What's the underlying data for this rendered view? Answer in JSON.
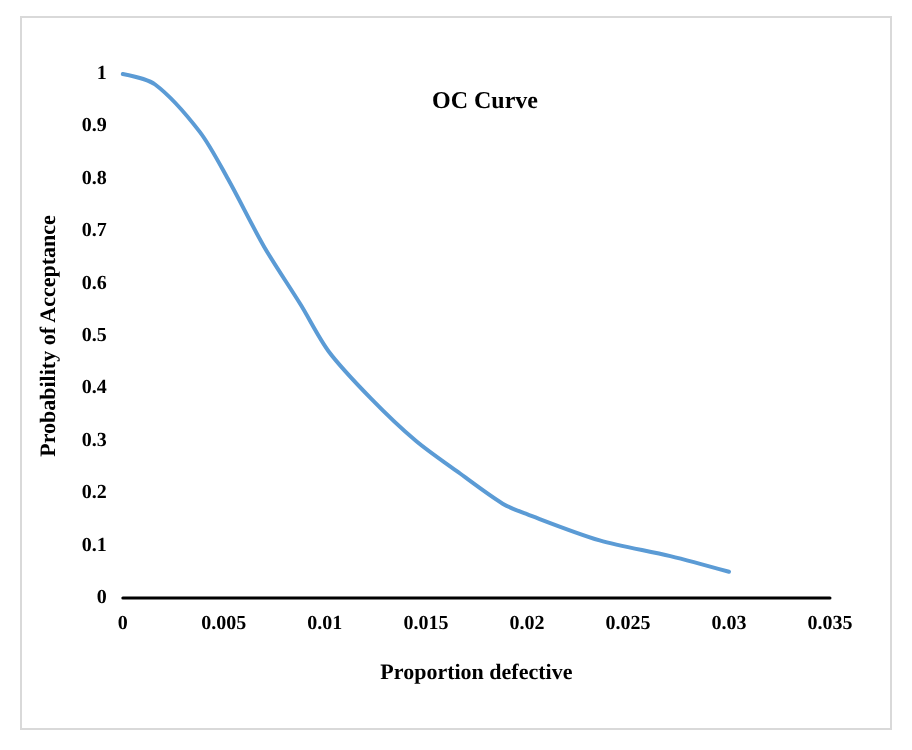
{
  "chart_data": {
    "type": "line",
    "title": "OC Curve",
    "xlabel": "Proportion defective",
    "ylabel": "Probability of Acceptance",
    "x": [
      0,
      0.0016,
      0.0038,
      0.0052,
      0.007,
      0.0088,
      0.0102,
      0.0123,
      0.0145,
      0.0166,
      0.0188,
      0.02,
      0.0236,
      0.0271,
      0.03
    ],
    "series": [
      {
        "color": "#5b9bd5",
        "values": [
          1,
          0.98,
          0.89,
          0.8,
          0.67,
          0.56,
          0.47,
          0.38,
          0.3,
          0.24,
          0.18,
          0.16,
          0.11,
          0.08,
          0.05
        ]
      }
    ],
    "xlim": [
      0,
      0.035
    ],
    "xticks": [
      0,
      0.005,
      0.01,
      0.015,
      0.02,
      0.025,
      0.03,
      0.035
    ],
    "ylim": [
      0,
      1
    ],
    "yticks": [
      0,
      0.1,
      0.2,
      0.3,
      0.4,
      0.5,
      0.6,
      0.7,
      0.8,
      0.9,
      1
    ],
    "grid": false,
    "marker": "none",
    "line_style": "solid"
  }
}
